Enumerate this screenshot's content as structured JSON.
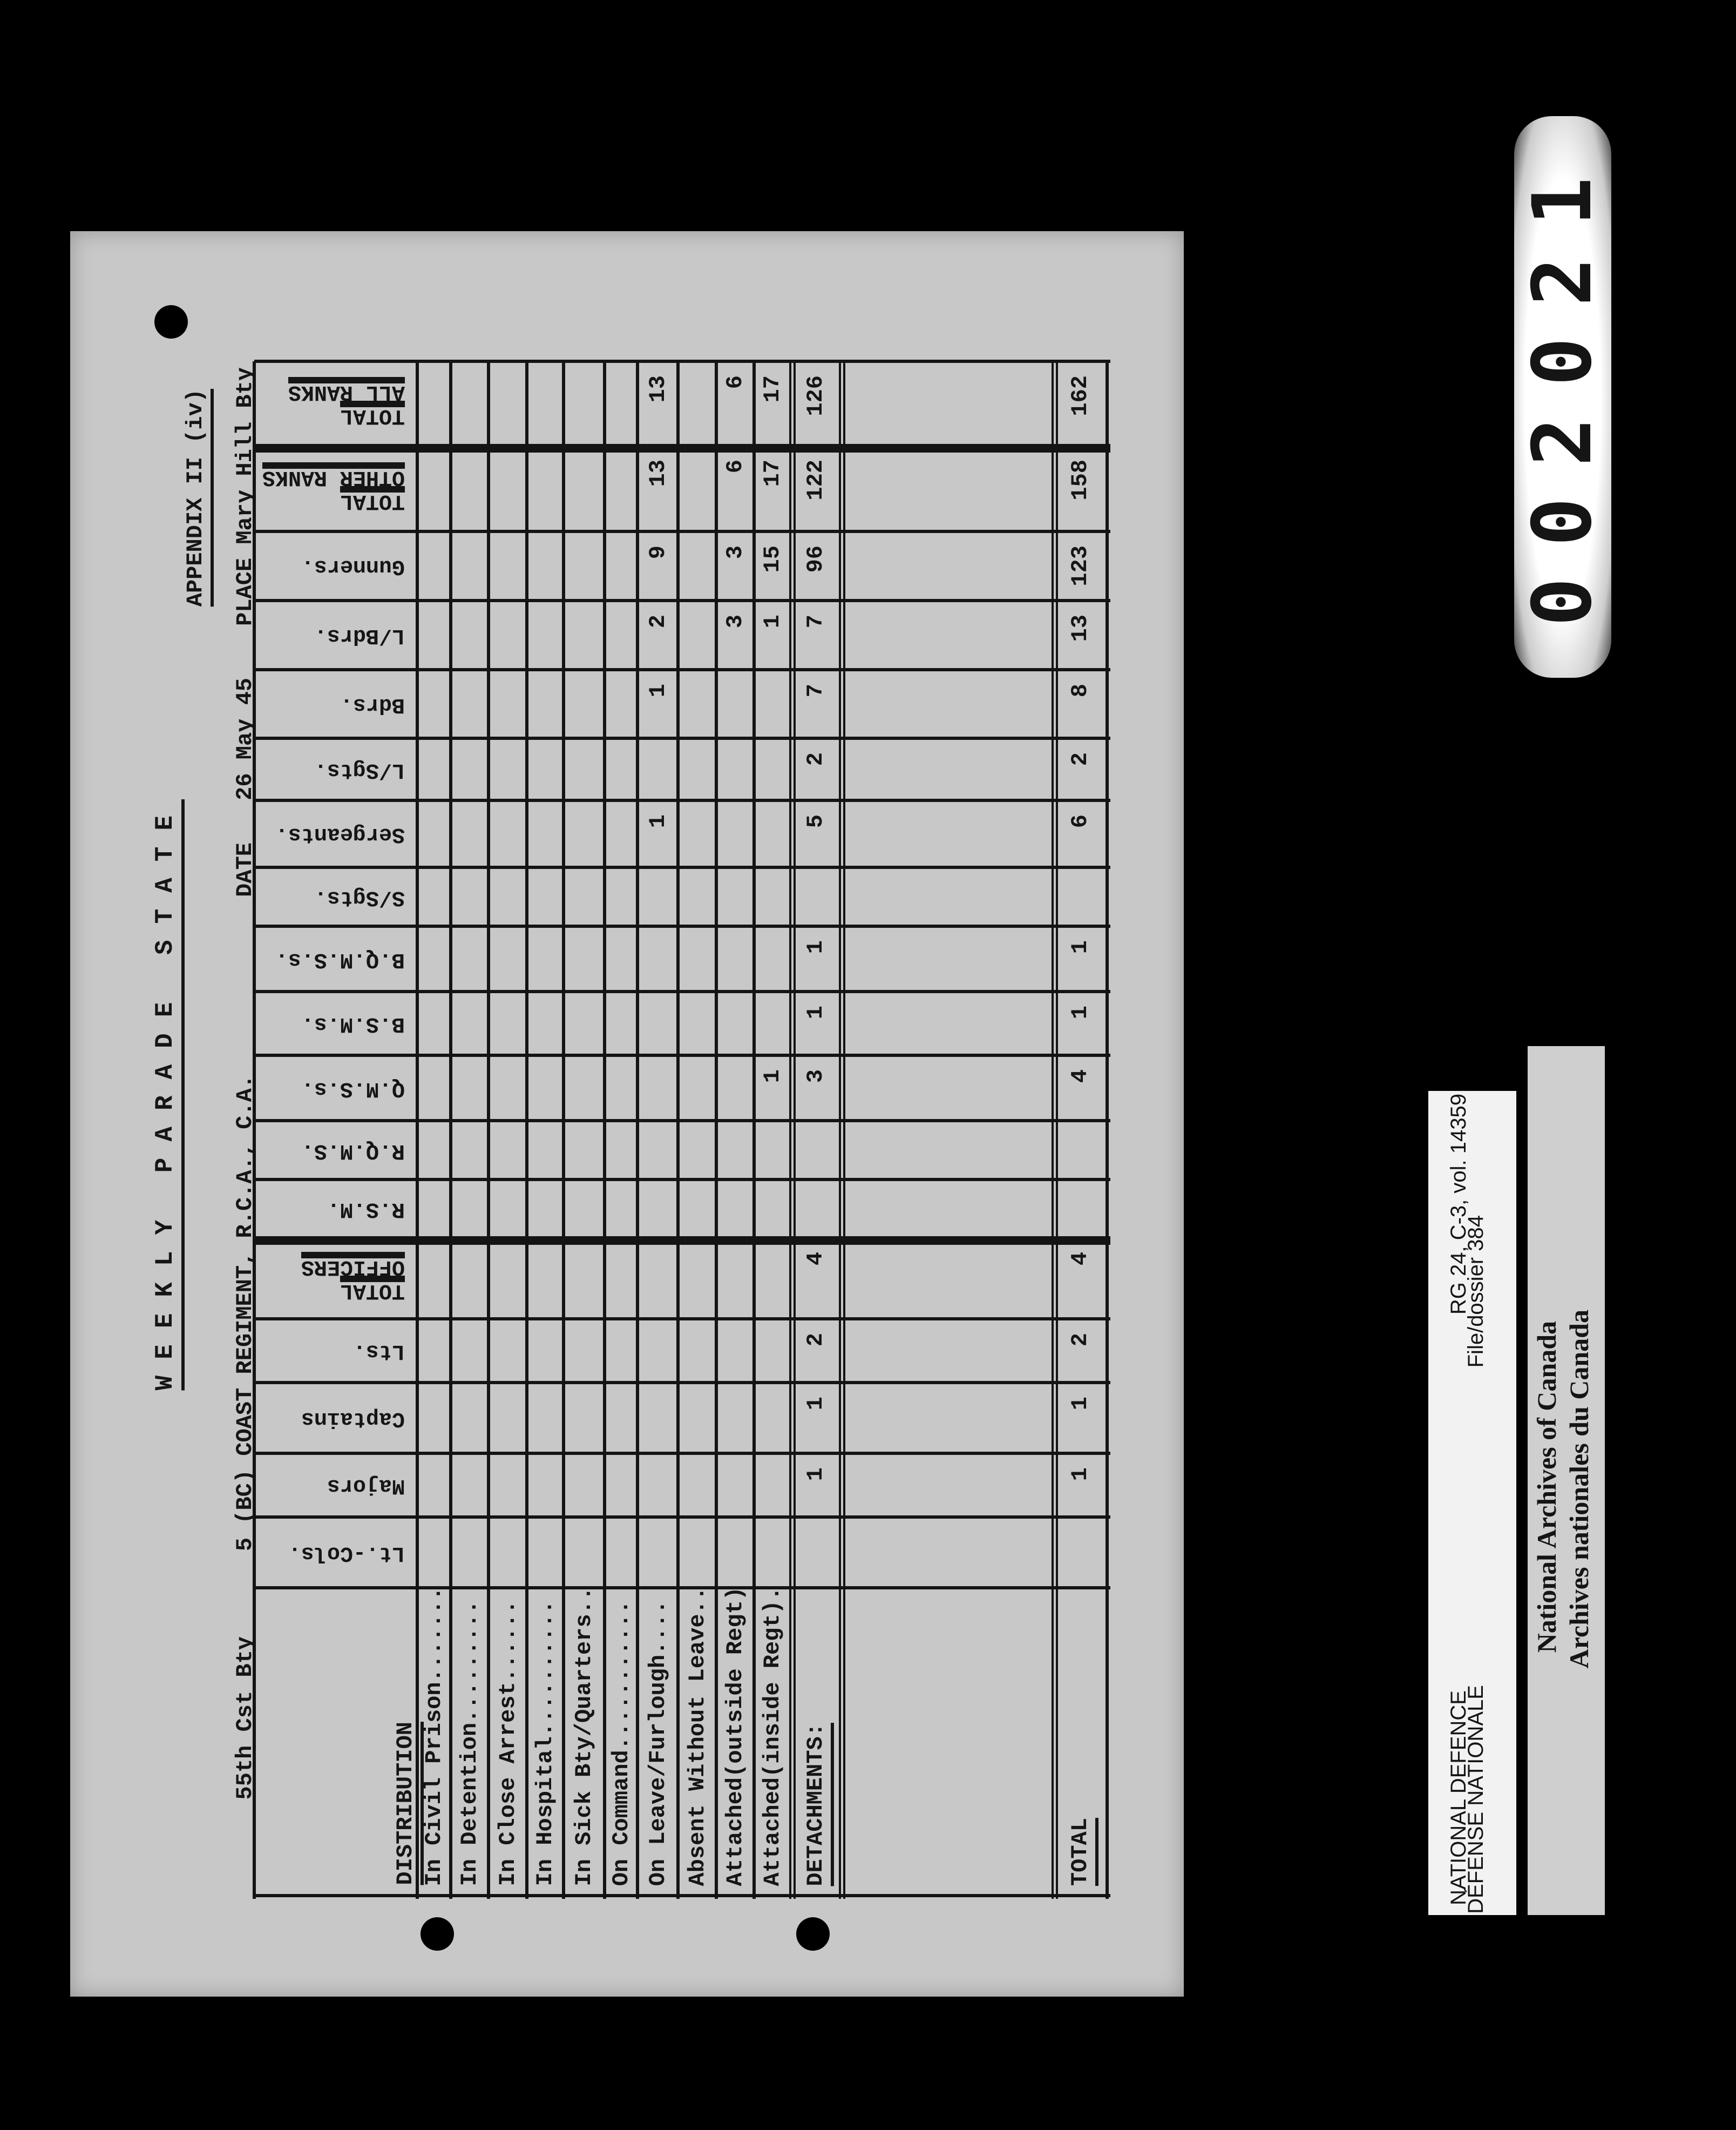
{
  "header": {
    "unit": "55th Cst Bty",
    "regiment": "5 (BC) COAST REGIMENT, R.C.A., C.A.",
    "date_label": "DATE",
    "date": "26 May 45",
    "place_label": "PLACE",
    "place": "Mary Hill Bty",
    "title": "WEEKLY PARADE STATE",
    "appendix": "APPENDIX II (iv)"
  },
  "table": {
    "distribution_header": "DISTRIBUTION",
    "columns": [
      "In Civil Prison.......",
      "In Detention.........",
      "In Close Arrest......",
      "In Hospital..........",
      "In Sick Bty/Quarters..",
      "On Command...........",
      "On Leave/Furlough....",
      "Absent Without Leave..",
      "Attached(outside Regt)",
      "Attached(inside Regt)."
    ],
    "detachments_label": "DETACHMENTS:",
    "total_label": "TOTAL",
    "ranks": [
      {
        "lines": [
          "TOTAL",
          "ALL RANKS"
        ],
        "values": [
          "",
          "",
          "",
          "",
          "",
          "",
          "13",
          "",
          "6",
          "17",
          "126",
          "162"
        ]
      },
      {
        "lines": [
          "TOTAL",
          "OTHER RANKS"
        ],
        "values": [
          "",
          "",
          "",
          "",
          "",
          "",
          "13",
          "",
          "6",
          "17",
          "122",
          "158"
        ]
      },
      {
        "lines": [
          "Gunners."
        ],
        "values": [
          "",
          "",
          "",
          "",
          "",
          "",
          "9",
          "",
          "3",
          "15",
          "96",
          "123"
        ]
      },
      {
        "lines": [
          "L/Bdrs."
        ],
        "values": [
          "",
          "",
          "",
          "",
          "",
          "",
          "2",
          "",
          "3",
          "1",
          "7",
          "13"
        ]
      },
      {
        "lines": [
          "Bdrs."
        ],
        "values": [
          "",
          "",
          "",
          "",
          "",
          "",
          "1",
          "",
          "",
          "",
          "7",
          "8"
        ]
      },
      {
        "lines": [
          "L/Sgts."
        ],
        "values": [
          "",
          "",
          "",
          "",
          "",
          "",
          "",
          "",
          "",
          "",
          "2",
          "2"
        ]
      },
      {
        "lines": [
          "Sergeants."
        ],
        "values": [
          "",
          "",
          "",
          "",
          "",
          "",
          "1",
          "",
          "",
          "",
          "5",
          "6"
        ]
      },
      {
        "lines": [
          "S/Sgts."
        ],
        "values": [
          "",
          "",
          "",
          "",
          "",
          "",
          "",
          "",
          "",
          "",
          "",
          ""
        ]
      },
      {
        "lines": [
          "B.Q.M.S.s."
        ],
        "values": [
          "",
          "",
          "",
          "",
          "",
          "",
          "",
          "",
          "",
          "",
          "1",
          "1"
        ]
      },
      {
        "lines": [
          "B.S.M.s."
        ],
        "values": [
          "",
          "",
          "",
          "",
          "",
          "",
          "",
          "",
          "",
          "",
          "1",
          "1"
        ]
      },
      {
        "lines": [
          "Q.M.S.s."
        ],
        "values": [
          "",
          "",
          "",
          "",
          "",
          "",
          "",
          "",
          "",
          "1",
          "3",
          "4"
        ]
      },
      {
        "lines": [
          "R.Q.M.S."
        ],
        "values": [
          "",
          "",
          "",
          "",
          "",
          "",
          "",
          "",
          "",
          "",
          "",
          ""
        ]
      },
      {
        "lines": [
          "R.S.M."
        ],
        "values": [
          "",
          "",
          "",
          "",
          "",
          "",
          "",
          "",
          "",
          "",
          "",
          ""
        ]
      },
      {
        "lines": [
          "TOTAL",
          "OFFICERS"
        ],
        "values": [
          "",
          "",
          "",
          "",
          "",
          "",
          "",
          "",
          "",
          "",
          "4",
          "4"
        ]
      },
      {
        "lines": [
          "Lts."
        ],
        "values": [
          "",
          "",
          "",
          "",
          "",
          "",
          "",
          "",
          "",
          "",
          "2",
          "2"
        ]
      },
      {
        "lines": [
          "Captains"
        ],
        "values": [
          "",
          "",
          "",
          "",
          "",
          "",
          "",
          "",
          "",
          "",
          "1",
          "1"
        ]
      },
      {
        "lines": [
          "Majors"
        ],
        "values": [
          "",
          "",
          "",
          "",
          "",
          "",
          "",
          "",
          "",
          "",
          "1",
          "1"
        ]
      },
      {
        "lines": [
          "Lt.-Cols."
        ],
        "values": [
          "",
          "",
          "",
          "",
          "",
          "",
          "",
          "",
          "",
          "",
          "",
          ""
        ]
      }
    ]
  },
  "archive": {
    "dept_en": "NATIONAL DEFENCE",
    "dept_fr": "DÉFENSE NATIONALE",
    "reference": "RG 24, C-3, vol. 14359",
    "file": "File/dossier 384",
    "archives_en": "National Archives of Canada",
    "archives_fr": "Archives nationales du Canada",
    "frame_number": "002021"
  }
}
